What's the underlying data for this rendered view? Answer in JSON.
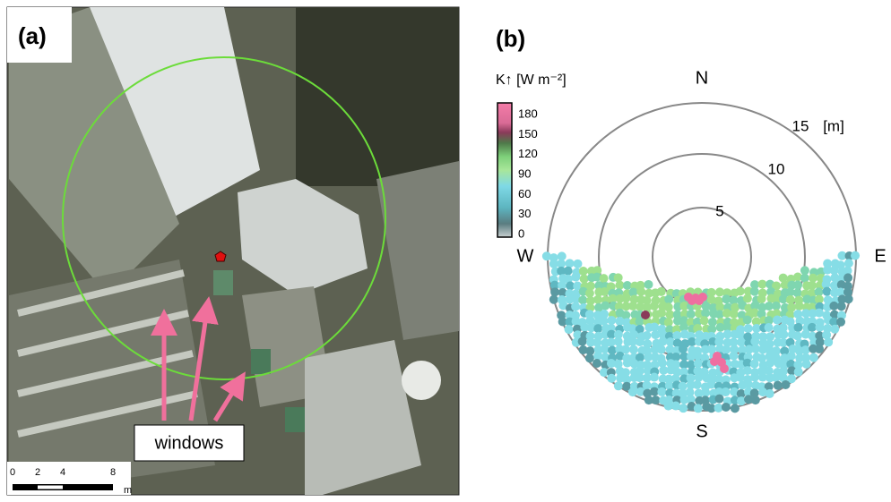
{
  "panel_a": {
    "label": "(a)",
    "annotation": "windows",
    "scale_bar": {
      "ticks": [
        "0",
        "2",
        "4",
        "8"
      ],
      "unit": "m"
    }
  },
  "panel_b": {
    "label": "(b)",
    "colorbar": {
      "title": "K↑ [W m⁻²]",
      "ticks": [
        "180",
        "150",
        "120",
        "90",
        "60",
        "30",
        "0"
      ]
    },
    "directions": {
      "north": "N",
      "south": "S",
      "west": "W",
      "east": "E"
    },
    "rings": [
      "5",
      "10",
      "15"
    ],
    "ring_unit": "[m]"
  }
}
